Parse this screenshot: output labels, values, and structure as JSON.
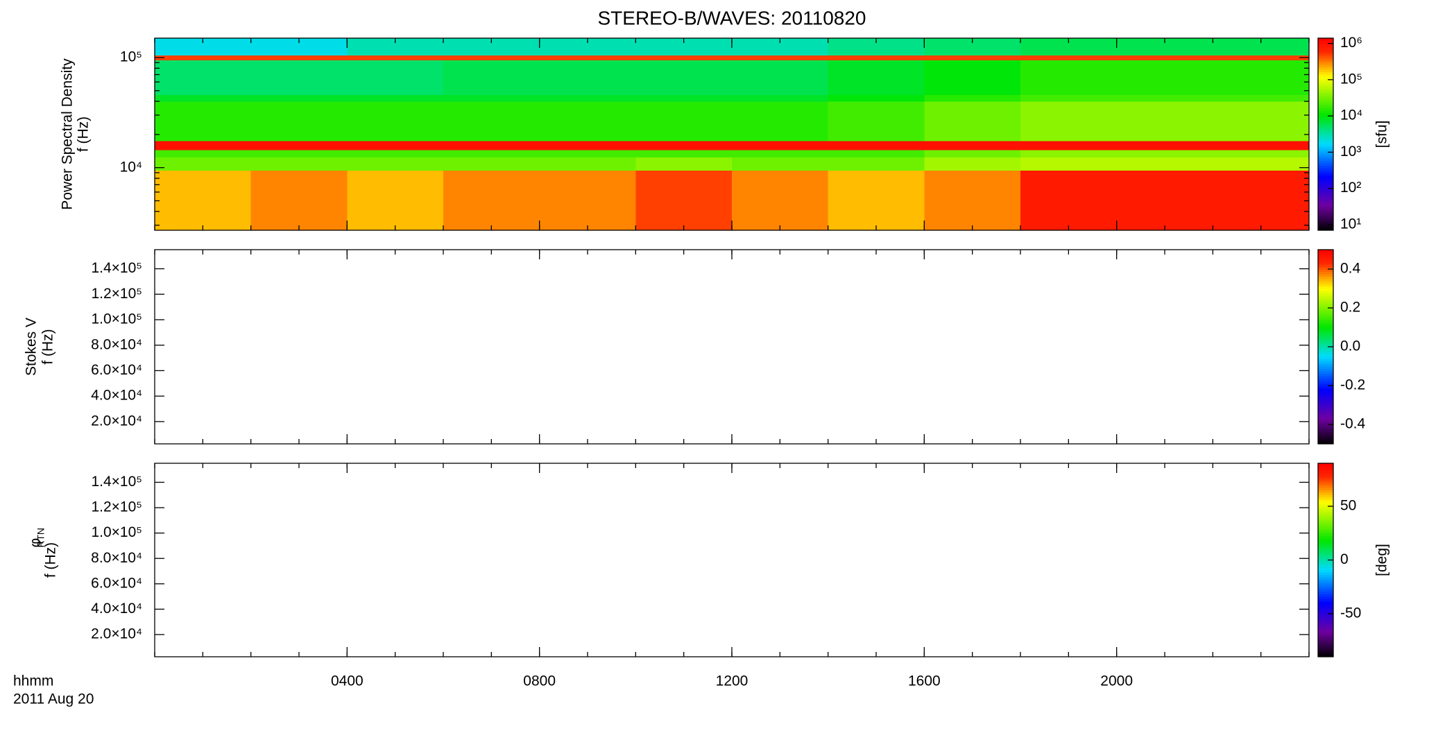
{
  "chart_data": [
    {
      "type": "heatmap",
      "title": "STEREO-B/WAVES: 20110820",
      "ylabel": {
        "name": "Power Spectral Density",
        "unit": "f (Hz)"
      },
      "ylog": true,
      "ylim": [
        2700,
        150000
      ],
      "yticks": [
        {
          "value": 10000,
          "label": "10⁴"
        },
        {
          "value": 100000,
          "label": "10⁵"
        }
      ],
      "x_edges": [
        0,
        2,
        4,
        6,
        8,
        10,
        12,
        14,
        16,
        18,
        20,
        22,
        24
      ],
      "y_edges": [
        2700,
        9500,
        12500,
        14500,
        17500,
        40000,
        46000,
        95000,
        105000,
        150000
      ],
      "z": [
        [
          200000,
          300000,
          200000,
          300000,
          300000,
          500000,
          300000,
          200000,
          300000,
          800000,
          800000,
          800000
        ],
        [
          30000,
          30000,
          30000,
          30000,
          30000,
          40000,
          30000,
          30000,
          50000,
          60000,
          60000,
          60000
        ],
        [
          20000,
          20000,
          20000,
          20000,
          20000,
          20000,
          20000,
          20000,
          30000,
          40000,
          40000,
          40000
        ],
        [
          1000000,
          1000000,
          1000000,
          1000000,
          1000000,
          1000000,
          1000000,
          1000000,
          1000000,
          1000000,
          1000000,
          1000000
        ],
        [
          15000,
          15000,
          15000,
          15000,
          15000,
          15000,
          15000,
          20000,
          30000,
          40000,
          40000,
          40000
        ],
        [
          8000,
          8000,
          8000,
          8000,
          8000,
          8000,
          8000,
          10000,
          15000,
          20000,
          20000,
          20000
        ],
        [
          5000,
          5000,
          5000,
          6000,
          6000,
          6000,
          6000,
          8000,
          10000,
          15000,
          15000,
          15000
        ],
        [
          500000,
          500000,
          500000,
          500000,
          500000,
          500000,
          500000,
          500000,
          500000,
          500000,
          500000,
          500000
        ],
        [
          2000,
          2000,
          3000,
          3000,
          3000,
          3000,
          3000,
          4000,
          5000,
          6000,
          6000,
          6000
        ]
      ],
      "colorbar": {
        "log": true,
        "lim": [
          7,
          1400000
        ],
        "label": "[sfu]",
        "ticks": [
          {
            "value": 10,
            "label": "10¹"
          },
          {
            "value": 100,
            "label": "10²"
          },
          {
            "value": 1000,
            "label": "10³"
          },
          {
            "value": 10000,
            "label": "10⁴"
          },
          {
            "value": 100000,
            "label": "10⁵"
          },
          {
            "value": 1000000,
            "label": "10⁶"
          }
        ]
      }
    },
    {
      "type": "heatmap",
      "ylabel": {
        "name": "Stokes V",
        "unit": "f (Hz)"
      },
      "ylog": false,
      "ylim": [
        2500,
        155000
      ],
      "yticks": [
        {
          "value": 20000,
          "label": "2.0×10⁴"
        },
        {
          "value": 40000,
          "label": "4.0×10⁴"
        },
        {
          "value": 60000,
          "label": "6.0×10⁴"
        },
        {
          "value": 80000,
          "label": "8.0×10⁴"
        },
        {
          "value": 100000,
          "label": "1.0×10⁵"
        },
        {
          "value": 120000,
          "label": "1.2×10⁵"
        },
        {
          "value": 140000,
          "label": "1.4×10⁵"
        }
      ],
      "colorbar": {
        "log": false,
        "lim": [
          -0.5,
          0.5
        ],
        "ticks": [
          -0.4,
          -0.2,
          {
            "value": 0,
            "label": "0.0"
          },
          0.2,
          0.4
        ]
      }
    },
    {
      "type": "heatmap",
      "ylabel": {
        "name": "φ",
        "name_subscript": "RTN",
        "unit": "f (Hz)"
      },
      "ylog": false,
      "ylim": [
        2500,
        155000
      ],
      "yticks": [
        {
          "value": 20000,
          "label": "2.0×10⁴"
        },
        {
          "value": 40000,
          "label": "4.0×10⁴"
        },
        {
          "value": 60000,
          "label": "6.0×10⁴"
        },
        {
          "value": 80000,
          "label": "8.0×10⁴"
        },
        {
          "value": 100000,
          "label": "1.0×10⁵"
        },
        {
          "value": 120000,
          "label": "1.2×10⁵"
        },
        {
          "value": 140000,
          "label": "1.4×10⁵"
        }
      ],
      "xlim": [
        0,
        24
      ],
      "xticks": [
        {
          "value": 4,
          "label": "0400"
        },
        {
          "value": 8,
          "label": "0800"
        },
        {
          "value": 12,
          "label": "1200"
        },
        {
          "value": 16,
          "label": "1600"
        },
        {
          "value": 20,
          "label": "2000"
        }
      ],
      "xlabel": "hhmm",
      "date": "2011 Aug 20",
      "colorbar": {
        "log": false,
        "lim": [
          -90,
          90
        ],
        "label": "[deg]",
        "ticks": [
          -50,
          0,
          50
        ]
      }
    }
  ]
}
